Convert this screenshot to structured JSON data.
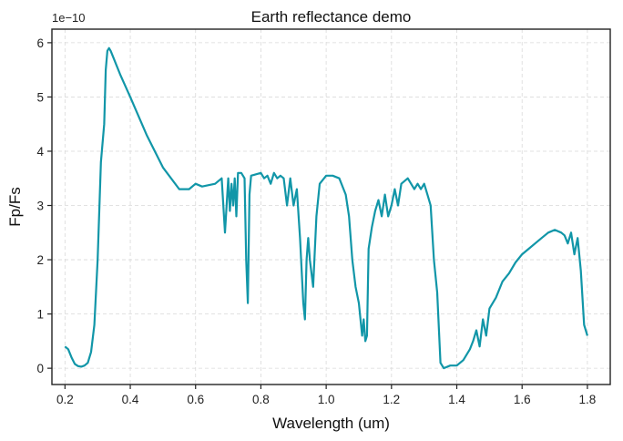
{
  "chart_data": {
    "type": "line",
    "title": "Earth reflectance demo",
    "xlabel": "Wavelength (um)",
    "ylabel": "Fp/Fs",
    "y_offset_label": "1e−10",
    "y_multiplier": 1e-10,
    "xlim": [
      0.16,
      1.87
    ],
    "ylim": [
      -0.3,
      6.25
    ],
    "x_ticks": [
      0.2,
      0.4,
      0.6,
      0.8,
      1.0,
      1.2,
      1.4,
      1.6,
      1.8
    ],
    "x_tick_labels": [
      "0.2",
      "0.4",
      "0.6",
      "0.8",
      "1.0",
      "1.2",
      "1.4",
      "1.6",
      "1.8"
    ],
    "y_ticks": [
      0,
      1,
      2,
      3,
      4,
      5,
      6
    ],
    "y_tick_labels": [
      "0",
      "1",
      "2",
      "3",
      "4",
      "5",
      "6"
    ],
    "grid": true,
    "line_color": "#1196a8",
    "series": [
      {
        "x": [
          0.2,
          0.21,
          0.22,
          0.23,
          0.24,
          0.25,
          0.26,
          0.27,
          0.28,
          0.29,
          0.3,
          0.31,
          0.32,
          0.325,
          0.33,
          0.335,
          0.34,
          0.35,
          0.37,
          0.4,
          0.45,
          0.5,
          0.55,
          0.58,
          0.6,
          0.62,
          0.66,
          0.68,
          0.69,
          0.7,
          0.705,
          0.71,
          0.715,
          0.72,
          0.725,
          0.73,
          0.74,
          0.75,
          0.755,
          0.76,
          0.765,
          0.77,
          0.8,
          0.81,
          0.82,
          0.83,
          0.84,
          0.85,
          0.86,
          0.87,
          0.88,
          0.89,
          0.9,
          0.91,
          0.92,
          0.93,
          0.935,
          0.94,
          0.945,
          0.95,
          0.96,
          0.97,
          0.98,
          1.0,
          1.02,
          1.04,
          1.06,
          1.07,
          1.08,
          1.09,
          1.1,
          1.11,
          1.115,
          1.12,
          1.125,
          1.13,
          1.14,
          1.15,
          1.16,
          1.17,
          1.18,
          1.19,
          1.2,
          1.21,
          1.22,
          1.23,
          1.25,
          1.27,
          1.28,
          1.29,
          1.3,
          1.31,
          1.32,
          1.33,
          1.34,
          1.35,
          1.36,
          1.38,
          1.4,
          1.42,
          1.44,
          1.45,
          1.46,
          1.47,
          1.48,
          1.49,
          1.5,
          1.52,
          1.54,
          1.56,
          1.58,
          1.6,
          1.62,
          1.64,
          1.66,
          1.68,
          1.7,
          1.72,
          1.73,
          1.74,
          1.75,
          1.76,
          1.77,
          1.78,
          1.79,
          1.8
        ],
        "y": [
          0.4,
          0.35,
          0.2,
          0.08,
          0.04,
          0.03,
          0.05,
          0.1,
          0.3,
          0.8,
          2.0,
          3.8,
          4.5,
          5.5,
          5.85,
          5.9,
          5.85,
          5.7,
          5.4,
          5.0,
          4.3,
          3.7,
          3.3,
          3.3,
          3.4,
          3.35,
          3.4,
          3.5,
          2.5,
          3.5,
          2.9,
          3.4,
          3.0,
          3.5,
          2.8,
          3.6,
          3.6,
          3.5,
          2.0,
          1.2,
          3.2,
          3.55,
          3.6,
          3.5,
          3.55,
          3.4,
          3.6,
          3.5,
          3.55,
          3.5,
          3.0,
          3.5,
          3.0,
          3.3,
          2.4,
          1.2,
          0.9,
          2.0,
          2.4,
          2.0,
          1.5,
          2.8,
          3.4,
          3.55,
          3.55,
          3.5,
          3.2,
          2.8,
          2.0,
          1.5,
          1.2,
          0.6,
          0.9,
          0.5,
          0.6,
          2.2,
          2.6,
          2.9,
          3.1,
          2.8,
          3.2,
          2.8,
          3.0,
          3.3,
          3.0,
          3.4,
          3.5,
          3.3,
          3.4,
          3.3,
          3.4,
          3.2,
          3.0,
          2.0,
          1.4,
          0.1,
          0.0,
          0.05,
          0.05,
          0.15,
          0.35,
          0.5,
          0.7,
          0.4,
          0.9,
          0.6,
          1.1,
          1.3,
          1.6,
          1.75,
          1.95,
          2.1,
          2.2,
          2.3,
          2.4,
          2.5,
          2.55,
          2.5,
          2.45,
          2.3,
          2.5,
          2.1,
          2.4,
          1.8,
          0.8,
          0.6
        ]
      }
    ]
  }
}
